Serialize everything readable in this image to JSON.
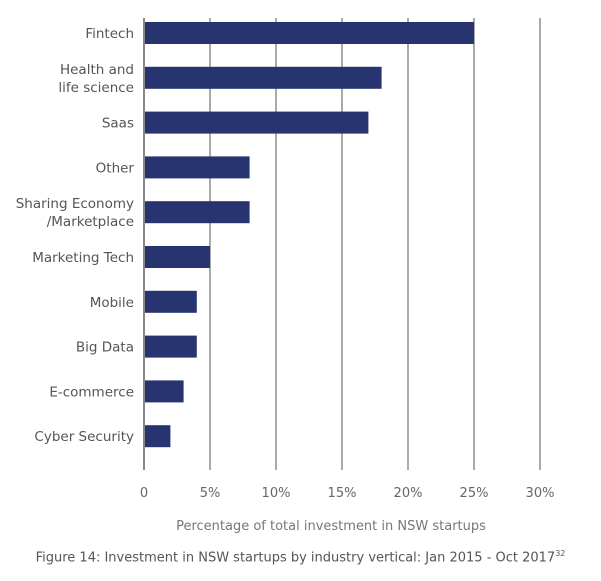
{
  "chart_data": {
    "type": "bar",
    "orientation": "horizontal",
    "categories": [
      [
        "Fintech"
      ],
      [
        "Health and",
        "life science"
      ],
      [
        "Saas"
      ],
      [
        "Other"
      ],
      [
        "Sharing Economy",
        "/Marketplace"
      ],
      [
        "Marketing Tech"
      ],
      [
        "Mobile"
      ],
      [
        "Big Data"
      ],
      [
        "E-commerce"
      ],
      [
        "Cyber Security"
      ]
    ],
    "values": [
      25,
      18,
      17,
      8,
      8,
      5,
      4,
      4,
      3,
      2
    ],
    "xlim": [
      0,
      30
    ],
    "xticks": [
      0,
      5,
      10,
      15,
      20,
      25,
      30
    ],
    "xtick_labels": [
      "0",
      "5%",
      "10%",
      "15%",
      "20%",
      "25%",
      "30%"
    ],
    "xlabel": "Percentage of total investment in NSW startups",
    "ylabel": "",
    "grid": "vertical",
    "legend": "none",
    "bar_color": "#273470",
    "grid_color": "#555555"
  },
  "caption": {
    "text": "Figure 14: Investment in NSW startups by industry vertical: Jan 2015 - Oct 2017",
    "footnote": "32"
  }
}
